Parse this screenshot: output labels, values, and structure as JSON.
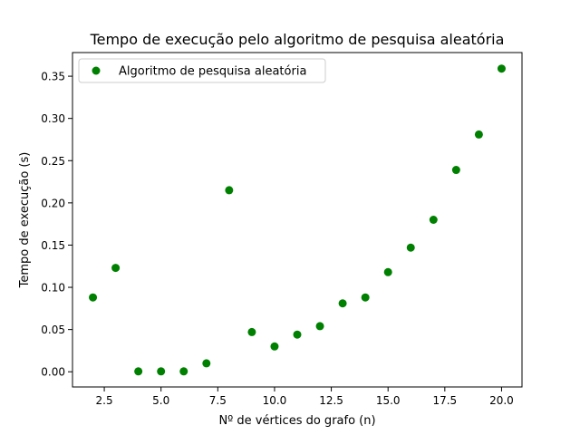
{
  "chart_data": {
    "type": "scatter",
    "title": "Tempo de execução pelo algoritmo de pesquisa aleatória",
    "xlabel": "Nº de vértices do grafo (n)",
    "ylabel": "Tempo de execução (s)",
    "xlim": [
      1.1,
      20.9
    ],
    "ylim": [
      -0.018,
      0.378
    ],
    "xticks": [
      2.5,
      5.0,
      7.5,
      10.0,
      12.5,
      15.0,
      17.5,
      20.0
    ],
    "xtick_labels": [
      "2.5",
      "5.0",
      "7.5",
      "10.0",
      "12.5",
      "15.0",
      "17.5",
      "20.0"
    ],
    "yticks": [
      0.0,
      0.05,
      0.1,
      0.15,
      0.2,
      0.25,
      0.3,
      0.35
    ],
    "ytick_labels": [
      "0.00",
      "0.05",
      "0.10",
      "0.15",
      "0.20",
      "0.25",
      "0.30",
      "0.35"
    ],
    "grid": false,
    "legend": "top-left",
    "series": [
      {
        "name": "Algoritmo de pesquisa aleatória",
        "color": "#008000",
        "x": [
          2,
          3,
          4,
          5,
          6,
          7,
          8,
          9,
          10,
          11,
          12,
          13,
          14,
          15,
          16,
          17,
          18,
          19,
          20
        ],
        "y": [
          0.088,
          0.123,
          0.0005,
          0.0005,
          0.0005,
          0.01,
          0.215,
          0.047,
          0.03,
          0.044,
          0.054,
          0.081,
          0.088,
          0.118,
          0.147,
          0.18,
          0.239,
          0.281,
          0.359
        ]
      }
    ]
  }
}
